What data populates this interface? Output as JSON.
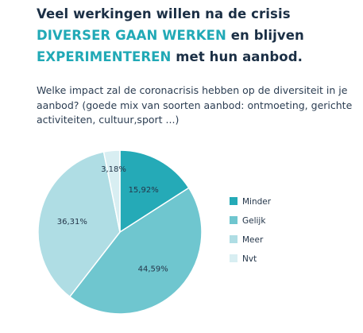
{
  "headline": {
    "part1": "Veel werkingen willen na de crisis ",
    "accent1": "DIVERSER GAAN WERKEN",
    "part2": " en blijven ",
    "accent2": "EXPERIMENTEREN",
    "part3": " met hun aanbod."
  },
  "question": "Welke impact zal de coronacrisis hebben op de diversiteit in je aanbod?  (goede mix van soorten aanbod: ontmoeting, gerichte activiteiten, cultuur,sport ...)",
  "colors": {
    "headline": "#1b2f45",
    "accent": "#21a9b6"
  },
  "chart_data": {
    "type": "pie",
    "categories": [
      "Minder",
      "Gelijk",
      "Meer",
      "Nvt"
    ],
    "values": [
      15.92,
      44.59,
      36.31,
      3.18
    ],
    "data_labels": [
      "15,92%",
      "44,59%",
      "36,31%",
      "3,18%"
    ],
    "colors": [
      "#25aab7",
      "#6fc6cf",
      "#afdde4",
      "#d8eef2"
    ],
    "start": "12 o'clock",
    "direction": "clockwise",
    "legend": "right"
  }
}
